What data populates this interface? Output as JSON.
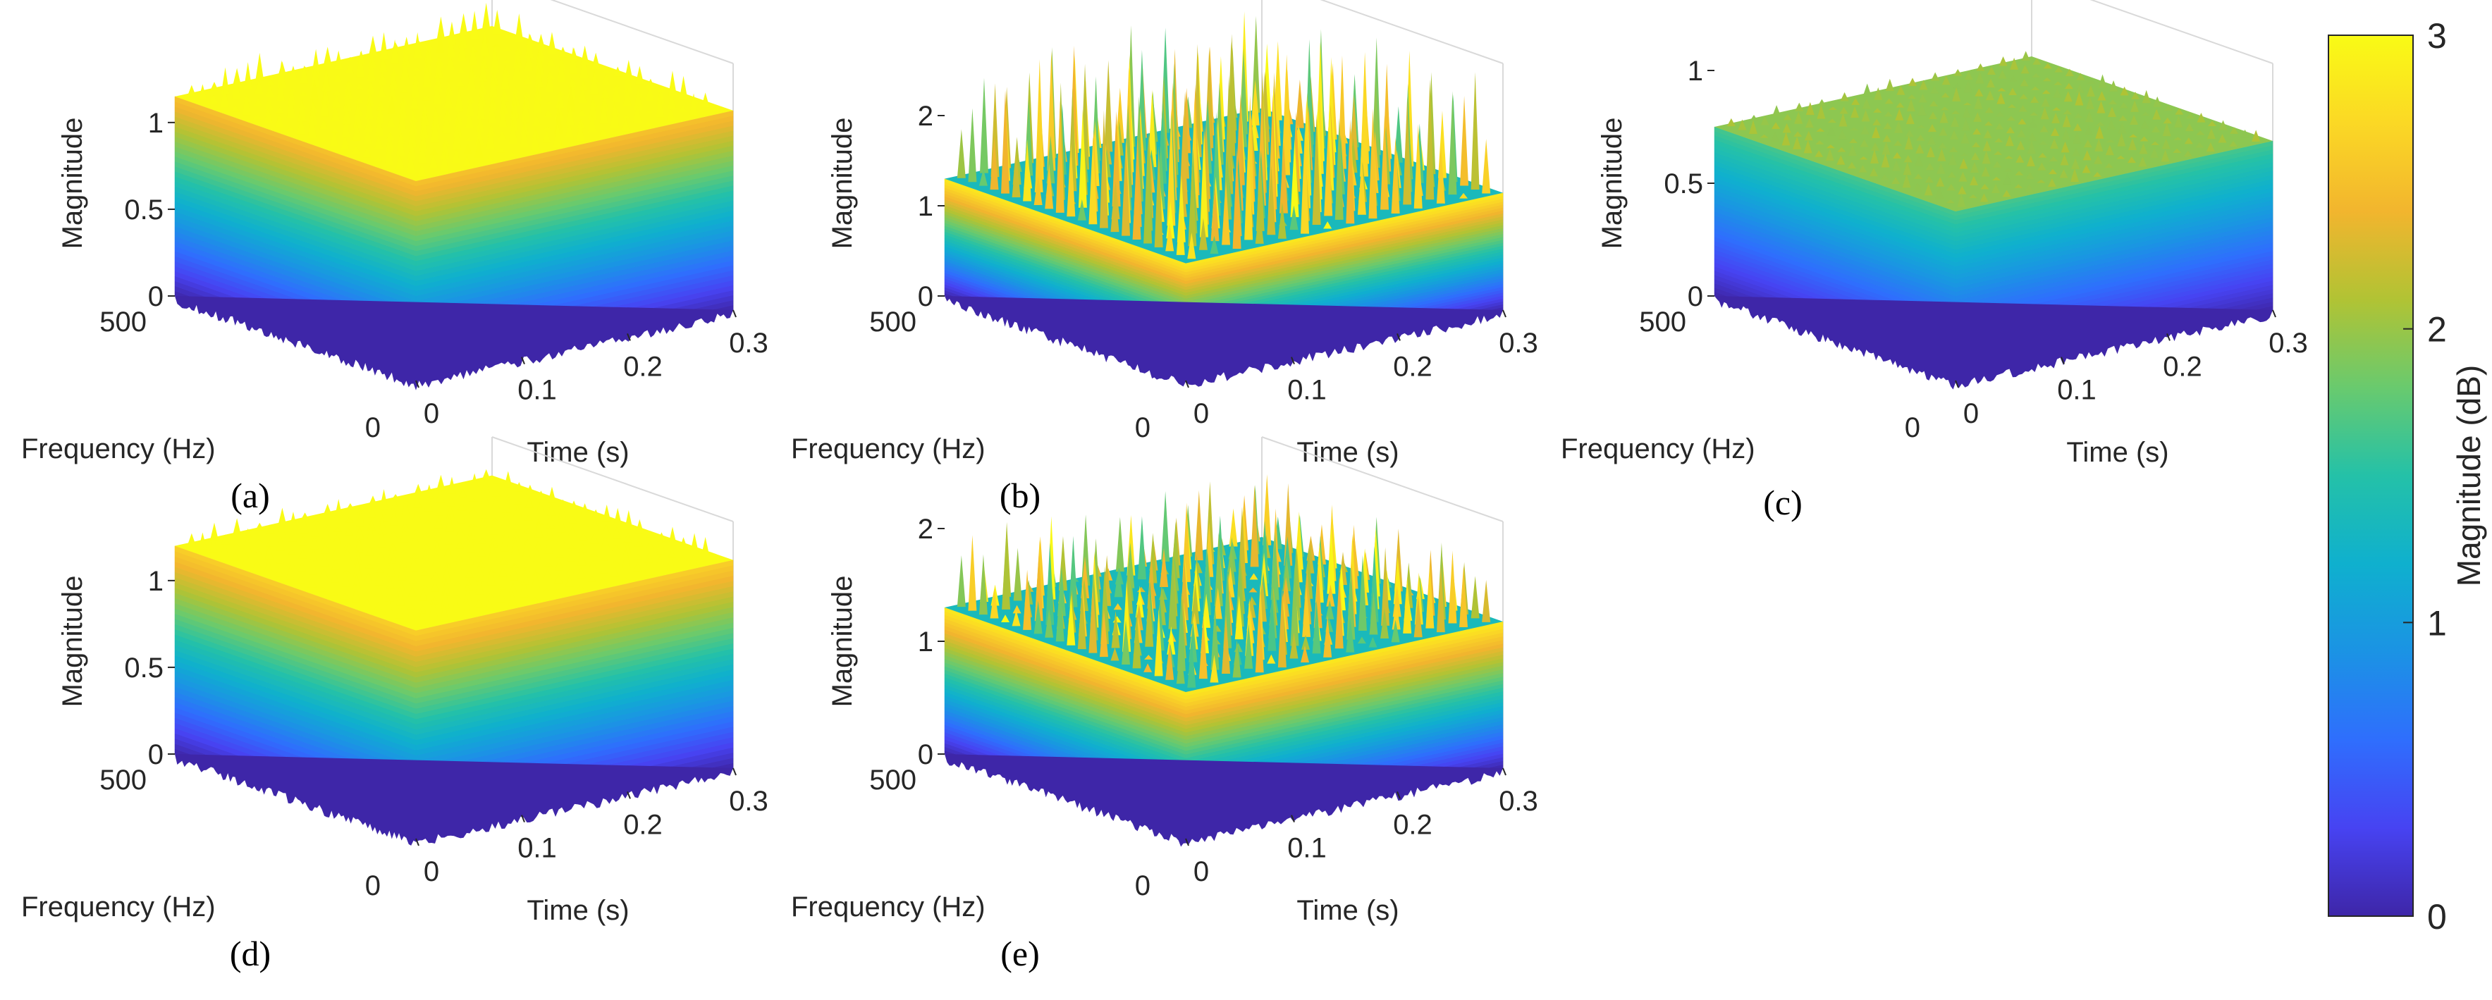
{
  "chart_data": [
    {
      "type": "surface",
      "panel_label": "(a)",
      "zlabel": "Magnitude",
      "xlabel": "Time (s)",
      "ylabel": "Frequency (Hz)",
      "x_ticks": [
        "0",
        "0.1",
        "0.2",
        "0.3"
      ],
      "y_ticks": [
        "0",
        "500"
      ],
      "z_ticks": [
        "0",
        "0.5",
        "1"
      ],
      "xlim": [
        0,
        0.3
      ],
      "ylim": [
        0,
        500
      ],
      "zlim": [
        0,
        1.3
      ],
      "surface_level": 1.15,
      "peak_level": 1.3,
      "style": "smooth"
    },
    {
      "type": "surface",
      "panel_label": "(b)",
      "zlabel": "Magnitude",
      "xlabel": "Time (s)",
      "ylabel": "Frequency (Hz)",
      "x_ticks": [
        "0",
        "0.1",
        "0.2",
        "0.3"
      ],
      "y_ticks": [
        "0",
        "500"
      ],
      "z_ticks": [
        "0",
        "1",
        "2"
      ],
      "xlim": [
        0,
        0.3
      ],
      "ylim": [
        0,
        500
      ],
      "zlim": [
        0,
        2.5
      ],
      "surface_level": 1.3,
      "peak_level": 2.6,
      "style": "spiky"
    },
    {
      "type": "surface",
      "panel_label": "(c)",
      "zlabel": "Magnitude",
      "xlabel": "Time (s)",
      "ylabel": "Frequency (Hz)",
      "x_ticks": [
        "0",
        "0.1",
        "0.2",
        "0.3"
      ],
      "y_ticks": [
        "0",
        "500"
      ],
      "z_ticks": [
        "0",
        "0.5",
        "1"
      ],
      "xlim": [
        0,
        0.3
      ],
      "ylim": [
        0,
        500
      ],
      "zlim": [
        0,
        1
      ],
      "surface_level": 0.75,
      "peak_level": 0.8,
      "style": "smooth"
    },
    {
      "type": "surface",
      "panel_label": "(d)",
      "zlabel": "Magnitude",
      "xlabel": "Time (s)",
      "ylabel": "Frequency (Hz)",
      "x_ticks": [
        "0",
        "0.1",
        "0.2",
        "0.3"
      ],
      "y_ticks": [
        "0",
        "500"
      ],
      "z_ticks": [
        "0",
        "0.5",
        "1"
      ],
      "xlim": [
        0,
        0.3
      ],
      "ylim": [
        0,
        500
      ],
      "zlim": [
        0,
        1.3
      ],
      "surface_level": 1.2,
      "peak_level": 1.3,
      "style": "smooth"
    },
    {
      "type": "surface",
      "panel_label": "(e)",
      "zlabel": "Magnitude",
      "xlabel": "Time (s)",
      "ylabel": "Frequency (Hz)",
      "x_ticks": [
        "0",
        "0.1",
        "0.2",
        "0.3"
      ],
      "y_ticks": [
        "0",
        "500"
      ],
      "z_ticks": [
        "0",
        "1",
        "2"
      ],
      "xlim": [
        0,
        0.3
      ],
      "ylim": [
        0,
        500
      ],
      "zlim": [
        0,
        2
      ],
      "surface_level": 1.3,
      "peak_level": 2.0,
      "style": "spiky"
    }
  ],
  "colorbar": {
    "label": "Magnitude (dB)",
    "ticks": [
      "0",
      "1",
      "2",
      "3"
    ],
    "range": [
      0,
      3
    ],
    "colormap": "parula",
    "colors": [
      "#3e26a8",
      "#4743f2",
      "#2f6efd",
      "#1b93e4",
      "#0fb0ce",
      "#24c1a8",
      "#69ca6e",
      "#b1c334",
      "#f2b52e",
      "#fbd825",
      "#f9fb15"
    ]
  }
}
